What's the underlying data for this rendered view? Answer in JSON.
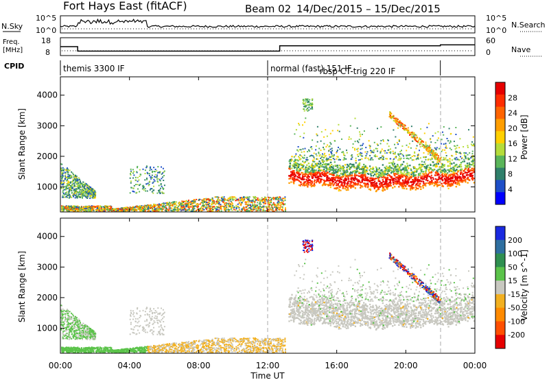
{
  "header": {
    "station": "Fort Hays East (fitACF)",
    "beam": "Beam 02",
    "dates": "14/Dec/2015 – 15/Dec/2015"
  },
  "top_panels": {
    "nsky": {
      "label": "N.Sky",
      "y_tick_top": "10^5",
      "y_tick_bottom": "10^0",
      "right_tick_top": "10^5",
      "right_tick_bottom": "10^0",
      "right_label": "N.Search"
    },
    "freq": {
      "label_line1": "Freq.",
      "label_line2": "[MHz]",
      "y_tick_top": "18",
      "y_tick_bottom": "8",
      "right_tick_top": "60",
      "right_tick_bottom": "0",
      "right_label": "Nave"
    },
    "cpid": {
      "label": "CPID",
      "segments": [
        {
          "name": "themis 3300 IF",
          "start_hour": 0
        },
        {
          "name": "normal (fast) 151 IF",
          "start_hour": 12
        },
        {
          "name": "rbsp CT-trig 220 IF",
          "start_hour": 13
        }
      ]
    }
  },
  "freq_series": {
    "x": [
      0,
      1,
      1,
      12.7,
      12.7,
      22,
      22,
      24
    ],
    "y": [
      13,
      13,
      10.5,
      10.5,
      13.5,
      13.5,
      14,
      14
    ]
  },
  "x_axis": {
    "label": "Time UT",
    "range_hours": [
      0,
      24
    ],
    "ticks": [
      0,
      4,
      8,
      12,
      16,
      20,
      24
    ],
    "tick_labels": [
      "00:00",
      "04:00",
      "08:00",
      "12:00",
      "16:00",
      "20:00",
      "00:00"
    ]
  },
  "chart_data": [
    {
      "type": "heatmap",
      "panel": "power",
      "ylabel": "Slant Range [km]",
      "ylim": [
        180,
        4600
      ],
      "yticks": [
        1000,
        2000,
        3000,
        4000
      ],
      "colorbar": {
        "label": "Power [dB]",
        "ticks": [
          4,
          8,
          12,
          16,
          20,
          24,
          28
        ],
        "colors": [
          "#0000ff",
          "#1e4fc8",
          "#2f7f6a",
          "#5ab55a",
          "#b5dc3a",
          "#ffd000",
          "#ff9e00",
          "#ff6400",
          "#ff2d00",
          "#e60000"
        ]
      },
      "regions": [
        {
          "desc": "ionospheric band",
          "t": [
            13.3,
            24
          ],
          "range_km": [
            1000,
            1900
          ],
          "power_db": [
            6,
            30
          ]
        },
        {
          "desc": "morning band",
          "t": [
            0,
            1.8
          ],
          "range_km": [
            650,
            1800
          ],
          "power_db": [
            4,
            16
          ]
        },
        {
          "desc": "ground scatter",
          "t": [
            0,
            13
          ],
          "range_km": [
            200,
            600
          ],
          "power_db": [
            4,
            26
          ]
        }
      ]
    },
    {
      "type": "heatmap",
      "panel": "velocity",
      "ylabel": "Slant Range [km]",
      "ylim": [
        180,
        4600
      ],
      "yticks": [
        1000,
        2000,
        3000,
        4000
      ],
      "colorbar": {
        "label": "Velocity [m s^-1]",
        "ticks": [
          200,
          100,
          50,
          15,
          -15,
          -50,
          -100,
          -200
        ],
        "colors": [
          "#1a2ae0",
          "#2f6fa0",
          "#2f8f50",
          "#5bc34a",
          "#c8c8c0",
          "#f2b020",
          "#ff8a00",
          "#ff4f00",
          "#e60000"
        ]
      },
      "regions": [
        {
          "desc": "ground scatter",
          "t": [
            12.5,
            24
          ],
          "range_km": [
            900,
            2400
          ],
          "velocity": [
            -15,
            15
          ]
        },
        {
          "desc": "morning echoes",
          "t": [
            0,
            2
          ],
          "range_km": [
            650,
            1800
          ],
          "velocity": [
            15,
            50
          ]
        },
        {
          "desc": "near range",
          "t": [
            3,
            13
          ],
          "range_km": [
            200,
            600
          ],
          "velocity": [
            -50,
            15
          ]
        }
      ]
    }
  ]
}
